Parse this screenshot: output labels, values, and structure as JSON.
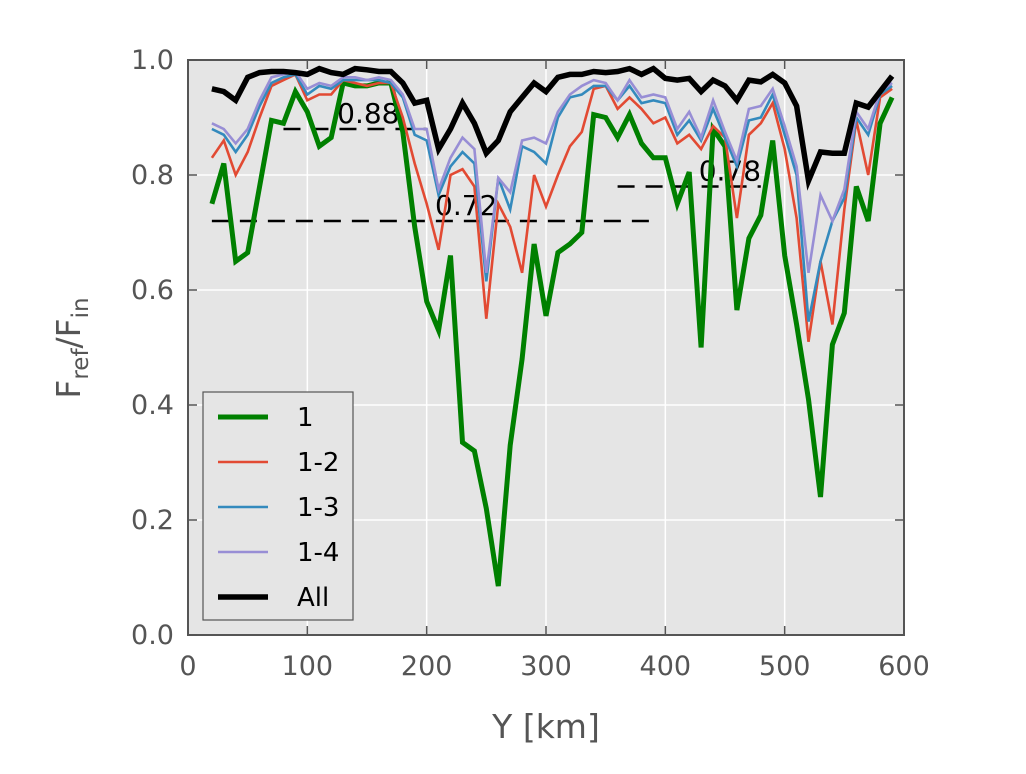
{
  "chart_data": {
    "type": "line",
    "title": "",
    "xlabel": "Y [km]",
    "ylabel": {
      "base1": "F",
      "sub1": "ref",
      "sep": "/F",
      "sub2": "in"
    },
    "xlim": [
      0,
      600
    ],
    "ylim": [
      0,
      1.0
    ],
    "xticks": [
      "0",
      "100",
      "200",
      "300",
      "400",
      "500",
      "600"
    ],
    "yticks": [
      "0.0",
      "0.2",
      "0.4",
      "0.6",
      "0.8",
      "1.0"
    ],
    "grid": true,
    "background": "#e5e5e5",
    "legend_position": "lower-left",
    "x": [
      20,
      30,
      40,
      50,
      60,
      70,
      80,
      90,
      100,
      110,
      120,
      130,
      140,
      150,
      160,
      170,
      180,
      190,
      200,
      210,
      220,
      230,
      240,
      250,
      260,
      270,
      280,
      290,
      300,
      310,
      320,
      330,
      340,
      350,
      360,
      370,
      380,
      390,
      400,
      410,
      420,
      430,
      440,
      450,
      460,
      470,
      480,
      490,
      500,
      510,
      520,
      530,
      540,
      550,
      560,
      570,
      580,
      590
    ],
    "series": [
      {
        "name": "1",
        "color": "#008000",
        "values": [
          0.75,
          0.82,
          0.65,
          0.665,
          0.78,
          0.895,
          0.89,
          0.945,
          0.91,
          0.85,
          0.865,
          0.96,
          0.955,
          0.955,
          0.96,
          0.96,
          0.875,
          0.71,
          0.58,
          0.53,
          0.66,
          0.335,
          0.32,
          0.22,
          0.085,
          0.33,
          0.48,
          0.68,
          0.555,
          0.665,
          0.68,
          0.7,
          0.905,
          0.9,
          0.865,
          0.905,
          0.855,
          0.83,
          0.83,
          0.75,
          0.805,
          0.5,
          0.88,
          0.85,
          0.565,
          0.69,
          0.73,
          0.86,
          0.66,
          0.54,
          0.41,
          0.24,
          0.505,
          0.56,
          0.78,
          0.72,
          0.89,
          0.935
        ]
      },
      {
        "name": "1-2",
        "color": "#e24a33",
        "values": [
          0.83,
          0.86,
          0.8,
          0.84,
          0.9,
          0.955,
          0.965,
          0.975,
          0.93,
          0.94,
          0.94,
          0.965,
          0.96,
          0.955,
          0.96,
          0.96,
          0.9,
          0.82,
          0.75,
          0.67,
          0.8,
          0.81,
          0.78,
          0.55,
          0.75,
          0.71,
          0.63,
          0.8,
          0.745,
          0.8,
          0.85,
          0.875,
          0.95,
          0.955,
          0.915,
          0.935,
          0.915,
          0.89,
          0.9,
          0.855,
          0.87,
          0.845,
          0.885,
          0.865,
          0.725,
          0.87,
          0.89,
          0.925,
          0.845,
          0.725,
          0.51,
          0.65,
          0.54,
          0.74,
          0.895,
          0.8,
          0.935,
          0.95
        ]
      },
      {
        "name": "1-3",
        "color": "#348abd",
        "values": [
          0.88,
          0.87,
          0.84,
          0.87,
          0.92,
          0.96,
          0.97,
          0.975,
          0.94,
          0.955,
          0.95,
          0.965,
          0.965,
          0.965,
          0.965,
          0.96,
          0.935,
          0.87,
          0.86,
          0.765,
          0.815,
          0.84,
          0.82,
          0.615,
          0.795,
          0.74,
          0.85,
          0.84,
          0.82,
          0.9,
          0.935,
          0.94,
          0.955,
          0.955,
          0.93,
          0.955,
          0.925,
          0.93,
          0.925,
          0.87,
          0.895,
          0.86,
          0.915,
          0.865,
          0.815,
          0.895,
          0.9,
          0.94,
          0.87,
          0.8,
          0.545,
          0.65,
          0.72,
          0.76,
          0.9,
          0.87,
          0.94,
          0.955
        ]
      },
      {
        "name": "1-4",
        "color": "#988ed5",
        "values": [
          0.89,
          0.88,
          0.855,
          0.88,
          0.93,
          0.97,
          0.975,
          0.98,
          0.95,
          0.96,
          0.955,
          0.97,
          0.97,
          0.965,
          0.97,
          0.965,
          0.94,
          0.88,
          0.88,
          0.775,
          0.83,
          0.865,
          0.845,
          0.63,
          0.795,
          0.77,
          0.86,
          0.865,
          0.855,
          0.91,
          0.94,
          0.955,
          0.965,
          0.96,
          0.93,
          0.965,
          0.935,
          0.94,
          0.935,
          0.88,
          0.91,
          0.865,
          0.93,
          0.875,
          0.825,
          0.915,
          0.92,
          0.95,
          0.885,
          0.815,
          0.63,
          0.765,
          0.72,
          0.775,
          0.91,
          0.88,
          0.945,
          0.96
        ]
      },
      {
        "name": "All",
        "color": "#000000",
        "values": [
          0.95,
          0.945,
          0.93,
          0.97,
          0.978,
          0.98,
          0.98,
          0.978,
          0.975,
          0.985,
          0.978,
          0.975,
          0.985,
          0.983,
          0.98,
          0.98,
          0.96,
          0.925,
          0.93,
          0.845,
          0.88,
          0.925,
          0.89,
          0.838,
          0.86,
          0.91,
          0.935,
          0.96,
          0.945,
          0.97,
          0.975,
          0.975,
          0.98,
          0.978,
          0.98,
          0.985,
          0.975,
          0.985,
          0.968,
          0.965,
          0.968,
          0.945,
          0.965,
          0.955,
          0.93,
          0.965,
          0.962,
          0.975,
          0.96,
          0.92,
          0.79,
          0.84,
          0.838,
          0.838,
          0.925,
          0.918,
          0.945,
          0.972
        ]
      }
    ],
    "annotations": [
      {
        "text": "0.88",
        "y": 0.88,
        "x_start": 80,
        "x_end": 200,
        "text_x": 125
      },
      {
        "text": "0.72",
        "y": 0.72,
        "x_start": 20,
        "x_end": 390,
        "text_x": 207
      },
      {
        "text": "0.78",
        "y": 0.78,
        "x_start": 360,
        "x_end": 480,
        "text_x": 428
      }
    ]
  }
}
